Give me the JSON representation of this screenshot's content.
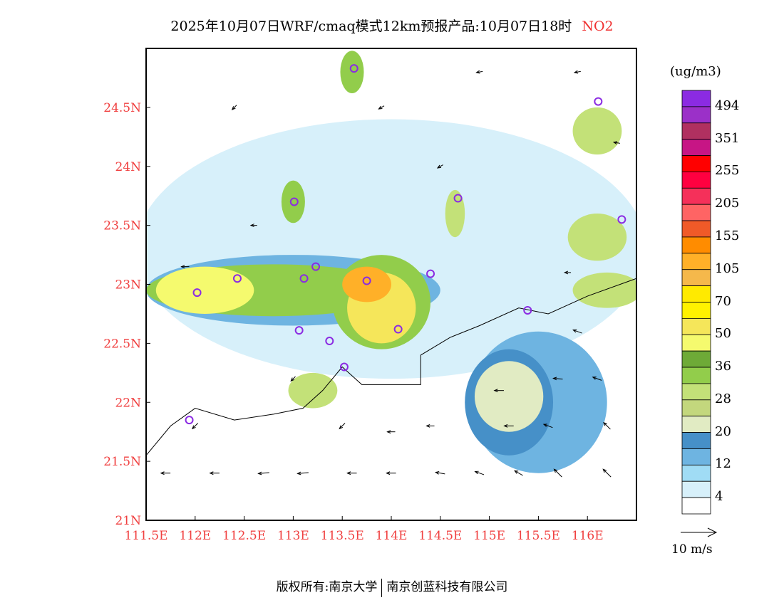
{
  "title": {
    "main": "2025年10月07日WRF/cmaq模式12km预报产品:10月07日18时",
    "species": "NO2"
  },
  "colorbar": {
    "unit": "(ug/m3)",
    "colors": [
      "#8B2BE2",
      "#9B30C8",
      "#B03060",
      "#C71585",
      "#FF0000",
      "#FF0040",
      "#F5305A",
      "#FF6464",
      "#F05A28",
      "#FF8C00",
      "#FFB028",
      "#F5B84B",
      "#FFEA00",
      "#FFF200",
      "#F5E65A",
      "#F5FA6E",
      "#6EAA37",
      "#92CD4B",
      "#C3E178",
      "#C3D77D",
      "#E1EBC3",
      "#4690C8",
      "#6EB4E1",
      "#A0DCF5",
      "#D7F0FA",
      "#FFFFFF"
    ],
    "labels": [
      "494",
      "351",
      "255",
      "205",
      "155",
      "105",
      "70",
      "50",
      "36",
      "28",
      "20",
      "12",
      "4"
    ]
  },
  "wind_legend": "10 m/s",
  "footer": {
    "left": "版权所有:南京大学",
    "right": "南京创蓝科技有限公司"
  },
  "chart_data": {
    "type": "map",
    "lon_range": [
      111.5,
      116.5
    ],
    "lat_range": [
      21,
      25
    ],
    "x_ticks": [
      "111.5E",
      "112E",
      "112.5E",
      "113E",
      "113.5E",
      "114E",
      "114.5E",
      "115E",
      "115.5E",
      "116E"
    ],
    "x_tick_values": [
      111.5,
      112,
      112.5,
      113,
      113.5,
      114,
      114.5,
      115,
      115.5,
      116
    ],
    "y_ticks": [
      "21N",
      "21.5N",
      "22N",
      "22.5N",
      "23N",
      "23.5N",
      "24N",
      "24.5N"
    ],
    "y_tick_values": [
      21,
      21.5,
      22,
      22.5,
      23,
      23.5,
      24,
      24.5
    ],
    "fields": [
      {
        "lon": 114.0,
        "lat": 23.3,
        "rx": 2.6,
        "ry": 1.1,
        "color": "#D7F0FA"
      },
      {
        "lon": 115.5,
        "lat": 22.0,
        "rx": 0.7,
        "ry": 0.6,
        "color": "#6EB4E1"
      },
      {
        "lon": 115.2,
        "lat": 22.0,
        "rx": 0.45,
        "ry": 0.45,
        "color": "#4690C8"
      },
      {
        "lon": 115.2,
        "lat": 22.05,
        "rx": 0.35,
        "ry": 0.3,
        "color": "#E1EBC3"
      },
      {
        "lon": 113.0,
        "lat": 22.95,
        "rx": 1.5,
        "ry": 0.3,
        "color": "#6EB4E1"
      },
      {
        "lon": 112.8,
        "lat": 22.95,
        "rx": 1.3,
        "ry": 0.22,
        "color": "#92CD4B"
      },
      {
        "lon": 112.1,
        "lat": 22.95,
        "rx": 0.5,
        "ry": 0.2,
        "color": "#F5FA6E"
      },
      {
        "lon": 113.9,
        "lat": 22.85,
        "rx": 0.5,
        "ry": 0.4,
        "color": "#92CD4B"
      },
      {
        "lon": 113.9,
        "lat": 22.8,
        "rx": 0.35,
        "ry": 0.3,
        "color": "#F5E65A"
      },
      {
        "lon": 113.75,
        "lat": 23.0,
        "rx": 0.25,
        "ry": 0.15,
        "color": "#FFB028"
      },
      {
        "lon": 113.0,
        "lat": 23.7,
        "rx": 0.12,
        "ry": 0.18,
        "color": "#92CD4B"
      },
      {
        "lon": 113.6,
        "lat": 24.8,
        "rx": 0.12,
        "ry": 0.18,
        "color": "#92CD4B"
      },
      {
        "lon": 116.1,
        "lat": 24.3,
        "rx": 0.25,
        "ry": 0.2,
        "color": "#C3E178"
      },
      {
        "lon": 116.1,
        "lat": 23.4,
        "rx": 0.3,
        "ry": 0.2,
        "color": "#C3E178"
      },
      {
        "lon": 116.2,
        "lat": 22.95,
        "rx": 0.35,
        "ry": 0.15,
        "color": "#C3E178"
      },
      {
        "lon": 113.2,
        "lat": 22.1,
        "rx": 0.25,
        "ry": 0.15,
        "color": "#C3E178"
      },
      {
        "lon": 114.65,
        "lat": 23.6,
        "rx": 0.1,
        "ry": 0.2,
        "color": "#C3E178"
      }
    ],
    "sites": [
      [
        113.62,
        24.83
      ],
      [
        116.11,
        24.55
      ],
      [
        113.01,
        23.7
      ],
      [
        114.68,
        23.73
      ],
      [
        116.35,
        23.55
      ],
      [
        112.43,
        23.05
      ],
      [
        112.02,
        22.93
      ],
      [
        113.11,
        23.05
      ],
      [
        113.23,
        23.15
      ],
      [
        113.75,
        23.03
      ],
      [
        114.4,
        23.09
      ],
      [
        115.39,
        22.78
      ],
      [
        114.07,
        22.62
      ],
      [
        113.06,
        22.61
      ],
      [
        113.37,
        22.52
      ],
      [
        113.52,
        22.3
      ],
      [
        111.94,
        21.85
      ]
    ],
    "coastline": [
      [
        111.5,
        21.55
      ],
      [
        111.75,
        21.8
      ],
      [
        112.0,
        21.95
      ],
      [
        112.4,
        21.85
      ],
      [
        112.8,
        21.9
      ],
      [
        113.1,
        21.95
      ],
      [
        113.3,
        22.1
      ],
      [
        113.5,
        22.3
      ],
      [
        113.7,
        22.15
      ],
      [
        114.0,
        22.15
      ],
      [
        114.3,
        22.15
      ],
      [
        114.3,
        22.4
      ],
      [
        114.6,
        22.55
      ],
      [
        114.9,
        22.65
      ],
      [
        115.3,
        22.8
      ],
      [
        115.6,
        22.75
      ],
      [
        116.0,
        22.9
      ],
      [
        116.5,
        23.05
      ]
    ],
    "winds": [
      [
        111.7,
        21.4,
        180,
        6
      ],
      [
        112.2,
        21.4,
        180,
        6
      ],
      [
        112.7,
        21.4,
        175,
        7
      ],
      [
        113.1,
        21.4,
        175,
        7
      ],
      [
        113.6,
        21.4,
        180,
        6
      ],
      [
        114.0,
        21.4,
        180,
        6
      ],
      [
        114.5,
        21.4,
        190,
        6
      ],
      [
        114.9,
        21.4,
        200,
        6
      ],
      [
        115.3,
        21.4,
        210,
        6
      ],
      [
        115.7,
        21.4,
        225,
        7
      ],
      [
        116.2,
        21.4,
        225,
        7
      ],
      [
        112.0,
        21.8,
        135,
        5
      ],
      [
        113.5,
        21.8,
        135,
        5
      ],
      [
        114.0,
        21.75,
        180,
        5
      ],
      [
        114.4,
        21.8,
        180,
        5
      ],
      [
        115.2,
        21.8,
        180,
        6
      ],
      [
        115.6,
        21.8,
        200,
        6
      ],
      [
        116.2,
        21.8,
        225,
        6
      ],
      [
        113.0,
        22.2,
        135,
        4
      ],
      [
        115.7,
        22.2,
        185,
        6
      ],
      [
        116.1,
        22.2,
        200,
        6
      ],
      [
        115.1,
        22.1,
        180,
        6
      ],
      [
        115.9,
        22.6,
        200,
        6
      ],
      [
        111.9,
        23.15,
        180,
        5
      ],
      [
        112.6,
        23.5,
        180,
        4
      ],
      [
        115.8,
        23.1,
        180,
        4
      ],
      [
        114.5,
        24.0,
        150,
        4
      ],
      [
        113.9,
        24.5,
        150,
        4
      ],
      [
        112.4,
        24.5,
        135,
        4
      ],
      [
        114.9,
        24.8,
        170,
        4
      ],
      [
        115.9,
        24.8,
        170,
        4
      ],
      [
        116.3,
        24.2,
        190,
        4
      ]
    ]
  }
}
